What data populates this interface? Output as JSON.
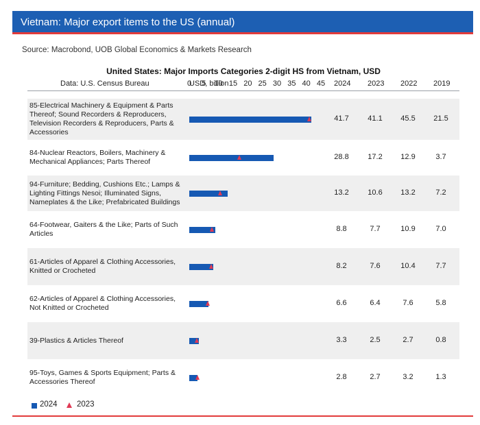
{
  "header": {
    "title": "Vietnam: Major export items to the US (annual)",
    "source": "Source: Macrobond, UOB Global Economics & Markets Research"
  },
  "chart_data": {
    "type": "bar",
    "title": "United States: Major Imports Categories 2-digit HS from Vietnam, USD",
    "data_note": "Data: U.S. Census Bureau",
    "unit_label": "USD, billion",
    "ticks": [
      "0",
      "5",
      "10",
      "15",
      "20",
      "25",
      "30",
      "35",
      "40",
      "45"
    ],
    "xlim": [
      0,
      45
    ],
    "year_headers": [
      "2024",
      "2023",
      "2022",
      "2019"
    ],
    "categories": [
      "85-Electrical Machinery & Equipment & Parts Thereof; Sound Recorders & Reproducers, Television Recorders & Reproducers, Parts & Accessories",
      "84-Nuclear Reactors, Boilers, Machinery & Mechanical Appliances; Parts Thereof",
      "94-Furniture; Bedding, Cushions Etc.; Lamps & Lighting Fittings Nesoi; Illuminated Signs, Nameplates & the Like; Prefabricated Buildings",
      "64-Footwear, Gaiters & the Like; Parts of Such Articles",
      "61-Articles of Apparel & Clothing Accessories, Knitted or Crocheted",
      "62-Articles of Apparel & Clothing Accessories, Not Knitted or Crocheted",
      "39-Plastics & Articles Thereof",
      "95-Toys, Games & Sports Equipment; Parts & Accessories Thereof"
    ],
    "series": [
      {
        "name": "2024",
        "values": [
          41.7,
          28.8,
          13.2,
          8.8,
          8.2,
          6.6,
          3.3,
          2.8
        ]
      },
      {
        "name": "2023",
        "values": [
          41.1,
          17.2,
          10.6,
          7.7,
          7.6,
          6.4,
          2.5,
          2.7
        ]
      },
      {
        "name": "2022",
        "values": [
          45.5,
          12.9,
          13.2,
          10.9,
          10.4,
          7.6,
          2.7,
          3.2
        ]
      },
      {
        "name": "2019",
        "values": [
          21.5,
          3.7,
          7.2,
          7.0,
          7.7,
          5.8,
          0.8,
          1.3
        ]
      }
    ],
    "table_values": [
      [
        "41.7",
        "41.1",
        "45.5",
        "21.5"
      ],
      [
        "28.8",
        "17.2",
        "12.9",
        "3.7"
      ],
      [
        "13.2",
        "10.6",
        "13.2",
        "7.2"
      ],
      [
        "8.8",
        "7.7",
        "10.9",
        "7.0"
      ],
      [
        "8.2",
        "7.6",
        "10.4",
        "7.7"
      ],
      [
        "6.6",
        "6.4",
        "7.6",
        "5.8"
      ],
      [
        "3.3",
        "2.5",
        "2.7",
        "0.8"
      ],
      [
        "2.8",
        "2.7",
        "3.2",
        "1.3"
      ]
    ],
    "legend": [
      "2024",
      "2023"
    ],
    "colors": {
      "bar_2024": "#1659b3",
      "marker_2023": "#e03a55"
    }
  },
  "colors": {
    "title_bar": "#1d5fb3",
    "accent_red": "#e23b3b",
    "row_band": "#efefef"
  }
}
